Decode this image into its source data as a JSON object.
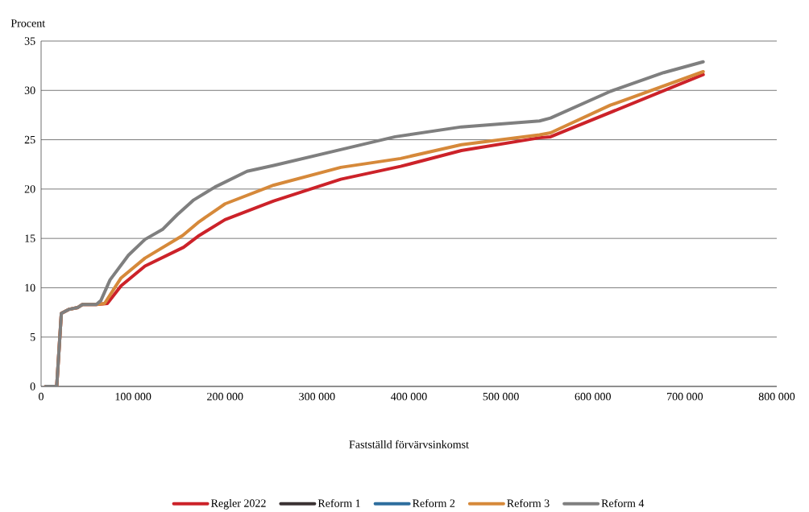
{
  "chart_data": {
    "type": "line",
    "ylabel": "Procent",
    "xlabel": "Fastställd förvärvsinkomst",
    "xlim": [
      0,
      800000
    ],
    "xticks": [
      0,
      {
        "value": 100000,
        "label": "100 000"
      },
      {
        "value": 200000,
        "label": "200 000"
      },
      {
        "value": 300000,
        "label": "300 000"
      },
      {
        "value": 400000,
        "label": "400 000"
      },
      {
        "value": 500000,
        "label": "500 000"
      },
      {
        "value": 600000,
        "label": "600 000"
      },
      {
        "value": 700000,
        "label": "700 000"
      },
      {
        "value": 800000,
        "label": "800 000"
      }
    ],
    "ylim": [
      0,
      35
    ],
    "yticks": [
      0,
      5,
      10,
      15,
      20,
      25,
      30,
      35
    ],
    "grid": "y",
    "legend": "bottom",
    "marker": "none",
    "line_style": "solid",
    "series": [
      {
        "name": "Regler 2022",
        "color": "#cc2229",
        "x": [
          5000,
          17000,
          22000,
          30000,
          40000,
          45000,
          60000,
          72000,
          87000,
          113000,
          155000,
          172000,
          200000,
          253000,
          326000,
          391000,
          457000,
          542000,
          554000,
          720000
        ],
        "values": [
          0,
          0,
          7.4,
          7.8,
          8.0,
          8.3,
          8.3,
          8.4,
          10.2,
          12.2,
          14.1,
          15.3,
          16.9,
          18.8,
          21.0,
          22.3,
          23.9,
          25.2,
          25.3,
          31.6
        ]
      },
      {
        "name": "Reform 1",
        "color": "#3a3233"
      },
      {
        "name": "Reform 2",
        "color": "#2e6e9e"
      },
      {
        "name": "Reform 3",
        "color": "#d6893a",
        "x": [
          5000,
          17000,
          22000,
          30000,
          40000,
          45000,
          60000,
          69000,
          87000,
          113000,
          154000,
          172000,
          200000,
          253000,
          326000,
          391000,
          457000,
          542000,
          554000,
          619000,
          720000
        ],
        "values": [
          0,
          0,
          7.4,
          7.8,
          8.0,
          8.3,
          8.3,
          8.4,
          11.0,
          13.0,
          15.3,
          16.7,
          18.5,
          20.4,
          22.2,
          23.1,
          24.5,
          25.5,
          25.7,
          28.5,
          31.9
        ]
      },
      {
        "name": "Reform 4",
        "color": "#7f7f7f",
        "x": [
          5000,
          17000,
          22000,
          30000,
          40000,
          45000,
          60000,
          65000,
          75000,
          95000,
          113000,
          132000,
          148000,
          166000,
          189000,
          224000,
          253000,
          335000,
          385000,
          457000,
          542000,
          554000,
          619000,
          677000,
          720000
        ],
        "values": [
          0,
          0,
          7.4,
          7.8,
          8.0,
          8.3,
          8.3,
          8.7,
          10.8,
          13.3,
          14.9,
          15.9,
          17.4,
          18.9,
          20.2,
          21.8,
          22.4,
          24.2,
          25.3,
          26.3,
          26.9,
          27.2,
          29.9,
          31.8,
          32.9
        ]
      }
    ]
  }
}
